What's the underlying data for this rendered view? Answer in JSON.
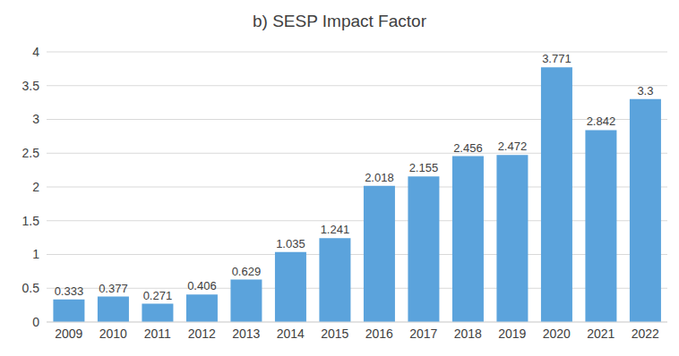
{
  "chart_data": {
    "type": "bar",
    "title": "b) SESP Impact Factor",
    "categories": [
      "2009",
      "2010",
      "2011",
      "2012",
      "2013",
      "2014",
      "2015",
      "2016",
      "2017",
      "2018",
      "2019",
      "2020",
      "2021",
      "2022"
    ],
    "values": [
      0.333,
      0.377,
      0.271,
      0.406,
      0.629,
      1.035,
      1.241,
      2.018,
      2.155,
      2.456,
      2.472,
      3.771,
      2.842,
      3.3
    ],
    "color": "#5ba3dc",
    "ylim": [
      0,
      4
    ],
    "yticks": [
      0,
      0.5,
      1,
      1.5,
      2,
      2.5,
      3,
      3.5,
      4
    ],
    "grid": true,
    "data_labels": true
  }
}
